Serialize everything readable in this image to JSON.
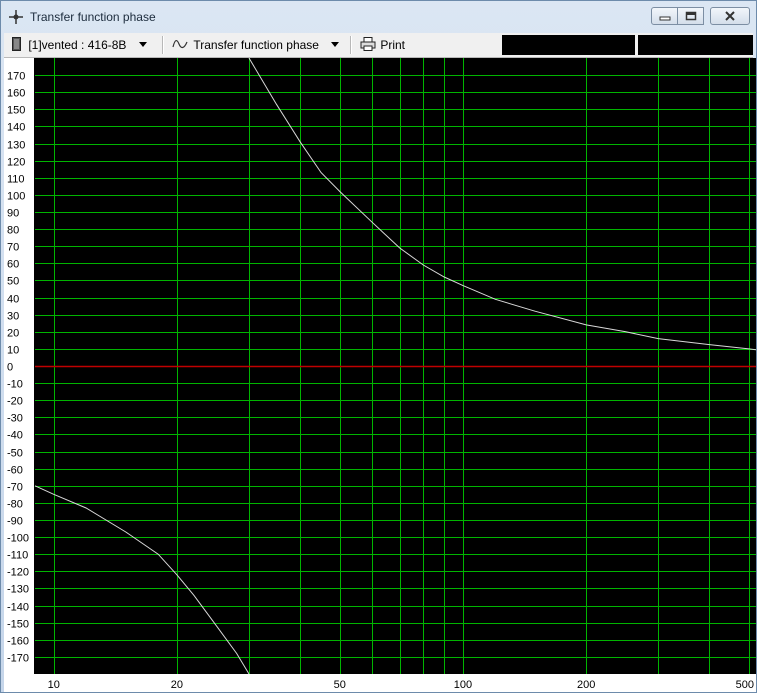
{
  "window": {
    "title": "Transfer function phase",
    "controls": [
      "minimize",
      "maximize",
      "close"
    ]
  },
  "toolbar": {
    "box_label": "[1]vented : 416-8B",
    "graph_label": "Transfer function phase",
    "print_label": "Print",
    "icons": {
      "box": "speaker-box-icon",
      "graph": "phase-curve-icon",
      "print": "printer-icon"
    }
  },
  "chart_data": {
    "type": "line",
    "x_scale": "log",
    "xlim": [
      9,
      520
    ],
    "ylim": [
      -180,
      180
    ],
    "grid": true,
    "y_ticks": [
      170,
      160,
      150,
      140,
      130,
      120,
      110,
      100,
      90,
      80,
      70,
      60,
      50,
      40,
      30,
      20,
      10,
      0,
      -10,
      -20,
      -30,
      -40,
      -50,
      -60,
      -70,
      -80,
      -90,
      -100,
      -110,
      -120,
      -130,
      -140,
      -150,
      -160,
      -170
    ],
    "x_tick_labels": [
      10,
      20,
      50,
      100,
      200,
      500
    ],
    "x_grid": [
      10,
      20,
      30,
      40,
      50,
      60,
      70,
      80,
      90,
      100,
      200,
      300,
      400,
      500
    ],
    "colors": {
      "background": "#000000",
      "grid": "#00b400",
      "zero_line": "#c00000",
      "curve": "#d8d8d8",
      "tick_label_background": "#ffffff"
    },
    "series": [
      {
        "values": [
          [
            30,
            180
          ],
          [
            35,
            153
          ],
          [
            40,
            131
          ],
          [
            45,
            113
          ],
          [
            50,
            102
          ],
          [
            60,
            84
          ],
          [
            70,
            69
          ],
          [
            80,
            59
          ],
          [
            90,
            52
          ],
          [
            100,
            47
          ],
          [
            120,
            39
          ],
          [
            150,
            32
          ],
          [
            200,
            24
          ],
          [
            250,
            20
          ],
          [
            300,
            16
          ],
          [
            400,
            12.5
          ],
          [
            500,
            10
          ],
          [
            520,
            9.5
          ]
        ]
      },
      {
        "values": [
          [
            9,
            -70
          ],
          [
            10,
            -75
          ],
          [
            12,
            -83
          ],
          [
            15,
            -97
          ],
          [
            18,
            -110
          ],
          [
            20,
            -122
          ],
          [
            22,
            -134
          ],
          [
            25,
            -152
          ],
          [
            28,
            -168
          ],
          [
            30,
            -180
          ]
        ]
      }
    ]
  }
}
